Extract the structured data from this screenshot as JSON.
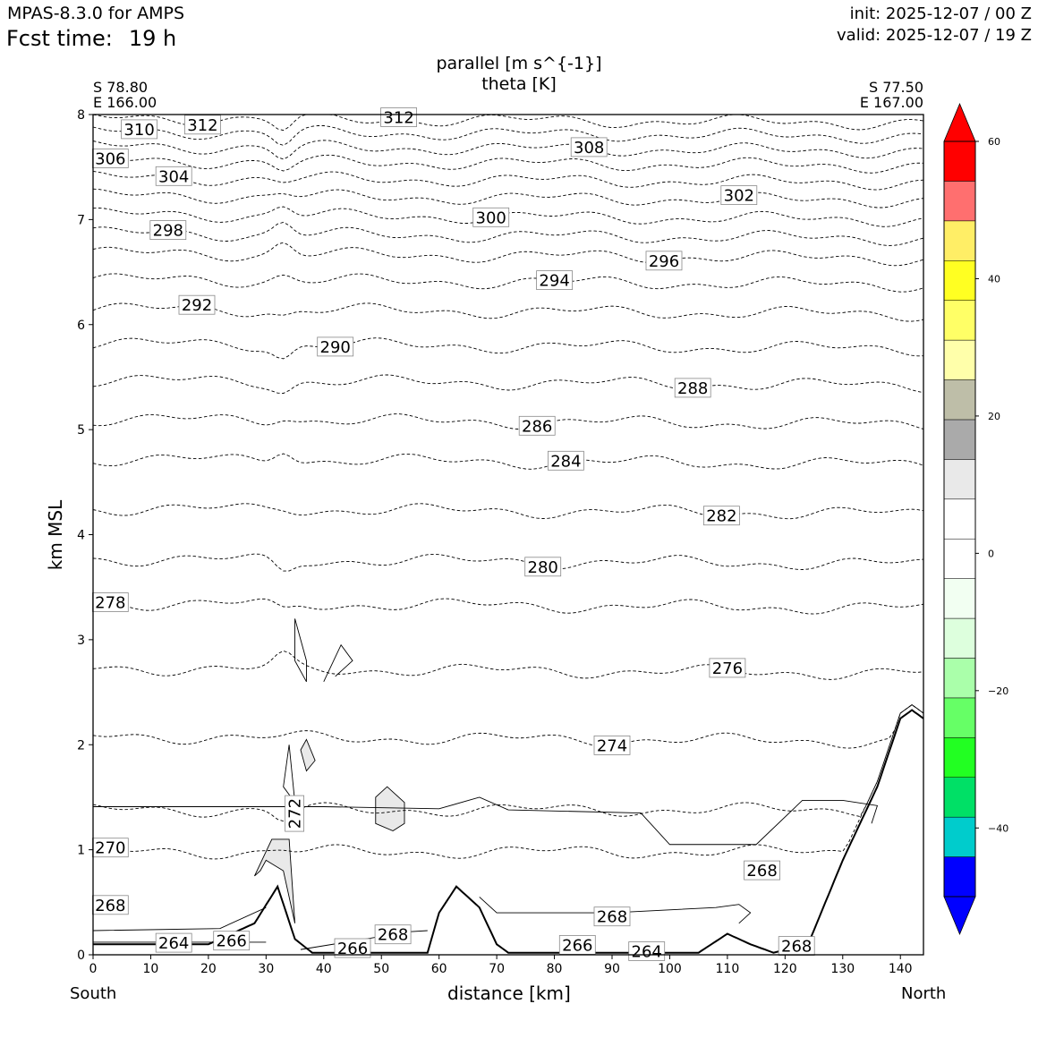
{
  "header": {
    "model": "MPAS-8.3.0 for AMPS",
    "fcst_label": "Fcst time:",
    "fcst_value": "19 h",
    "init": "init: 2025-12-07 / 00 Z",
    "valid": "valid: 2025-12-07 / 19 Z"
  },
  "plot": {
    "title_line1": "parallel [m s^{-1}]",
    "title_line2": "theta [K]",
    "start_lat": "S 78.80",
    "start_lon": "E 166.00",
    "end_lat": "S 77.50",
    "end_lon": "E 167.00",
    "south": "South",
    "north": "North"
  },
  "chart_data": {
    "type": "contour cross-section",
    "xlabel": "distance [km]",
    "ylabel": "km MSL",
    "xlim": [
      0,
      144
    ],
    "ylim": [
      0,
      8
    ],
    "xticks": [
      0,
      10,
      20,
      30,
      40,
      50,
      60,
      70,
      80,
      90,
      100,
      110,
      120,
      130,
      140
    ],
    "yticks": [
      0,
      1,
      2,
      3,
      4,
      5,
      6,
      7,
      8
    ],
    "terrain": [
      [
        0,
        0.1
      ],
      [
        20,
        0.1
      ],
      [
        28,
        0.3
      ],
      [
        32,
        0.65
      ],
      [
        35,
        0.15
      ],
      [
        38,
        0.02
      ],
      [
        58,
        0.02
      ],
      [
        60,
        0.4
      ],
      [
        63,
        0.65
      ],
      [
        67,
        0.45
      ],
      [
        70,
        0.1
      ],
      [
        72,
        0.02
      ],
      [
        105,
        0.02
      ],
      [
        110,
        0.2
      ],
      [
        114,
        0.1
      ],
      [
        118,
        0.02
      ],
      [
        124,
        0.1
      ],
      [
        130,
        0.9
      ],
      [
        136,
        1.6
      ],
      [
        140,
        2.25
      ],
      [
        142,
        2.33
      ],
      [
        144,
        2.25
      ]
    ],
    "theta_contours": [
      {
        "level": 270,
        "base": 0.98,
        "label_x": 3
      },
      {
        "level": 272,
        "base": 1.38,
        "label_x": 35,
        "label_rot": -90
      },
      {
        "level": 274,
        "base": 2.08,
        "label_x": 90
      },
      {
        "level": 276,
        "base": 2.73,
        "label_x": 110
      },
      {
        "level": 278,
        "base": 3.35,
        "label_x": 3
      },
      {
        "level": 280,
        "base": 3.77,
        "label_x": 78
      },
      {
        "level": 282,
        "base": 4.25,
        "label_x": 109
      },
      {
        "level": 284,
        "base": 4.72,
        "label_x": 82
      },
      {
        "level": 286,
        "base": 5.1,
        "label_x": 77
      },
      {
        "level": 288,
        "base": 5.47,
        "label_x": 104
      },
      {
        "level": 290,
        "base": 5.82,
        "label_x": 42
      },
      {
        "level": 292,
        "base": 6.15,
        "label_x": 18
      },
      {
        "level": 294,
        "base": 6.43,
        "label_x": 80
      },
      {
        "level": 296,
        "base": 6.68,
        "label_x": 99
      },
      {
        "level": 298,
        "base": 6.87,
        "label_x": 13
      },
      {
        "level": 300,
        "base": 7.05,
        "label_x": 69
      },
      {
        "level": 302,
        "base": 7.23,
        "label_x": 112
      },
      {
        "level": 304,
        "base": 7.4,
        "label_x": 14
      },
      {
        "level": 306,
        "base": 7.56,
        "label_x": 3
      },
      {
        "level": 308,
        "base": 7.7,
        "label_x": 86
      },
      {
        "level": 310,
        "base": 7.84,
        "label_x": 8
      },
      {
        "level": 312,
        "base": 7.97,
        "label_x": 19
      }
    ],
    "low_theta_labels": [
      {
        "text": "268",
        "x": 3,
        "y": 0.47
      },
      {
        "text": "264",
        "x": 14,
        "y": 0.11
      },
      {
        "text": "266",
        "x": 24,
        "y": 0.13
      },
      {
        "text": "266",
        "x": 45,
        "y": 0.06
      },
      {
        "text": "268",
        "x": 52,
        "y": 0.19
      },
      {
        "text": "268",
        "x": 90,
        "y": 0.36
      },
      {
        "text": "266",
        "x": 84,
        "y": 0.09
      },
      {
        "text": "264",
        "x": 96,
        "y": 0.03
      },
      {
        "text": "268",
        "x": 122,
        "y": 0.08
      },
      {
        "text": "268",
        "x": 116,
        "y": 0.8
      },
      {
        "text": "312",
        "x": 53,
        "y": 7.97
      }
    ],
    "colorbar": {
      "label_ticks": [
        "60",
        "40",
        "20",
        "0",
        "−20",
        "−40"
      ],
      "tick_values": [
        60,
        40,
        20,
        0,
        -20,
        -40
      ],
      "levels": [
        -50,
        -45,
        -40,
        -35,
        -30,
        -25,
        -20,
        -15,
        -10,
        -5,
        0,
        5,
        10,
        15,
        20,
        25,
        30,
        35,
        40,
        45,
        50,
        55,
        60
      ],
      "colors": [
        "#0000ff",
        "#00cccc",
        "#00e066",
        "#22ff22",
        "#66ff66",
        "#aaffaa",
        "#ddffdd",
        "#f2fff2",
        "#ffffff",
        "#ffffff",
        "#e9e9e9",
        "#aaaaaa",
        "#bebea8",
        "#ffffaa",
        "#ffff66",
        "#ffff22",
        "#ffee66",
        "#ff6f6f",
        "#ff0000"
      ],
      "under": "#0000ff",
      "over": "#ff0000"
    }
  }
}
